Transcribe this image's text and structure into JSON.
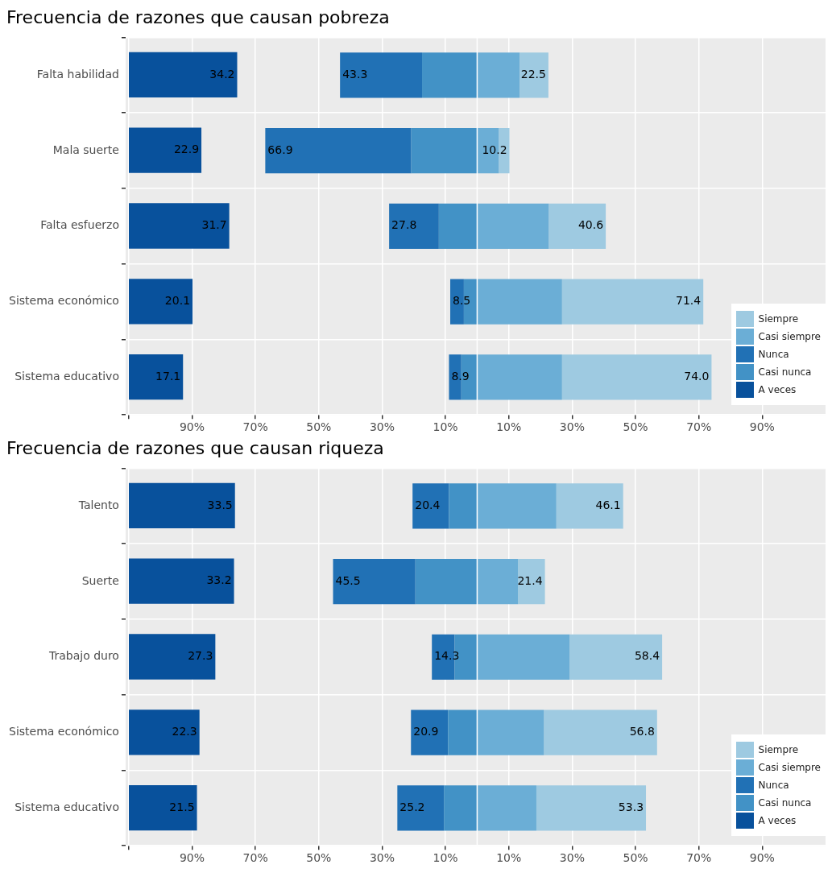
{
  "chart_data": [
    {
      "type": "bar",
      "orientation": "horizontal",
      "stacked": true,
      "title": "Frecuencia de razones que causan pobreza",
      "categories": [
        "Falta habilidad",
        "Mala suerte",
        "Falta esfuerzo",
        "Sistema económico",
        "Sistema educativo"
      ],
      "series": [
        {
          "name": "Casi nunca",
          "color": "#4292c6",
          "values": [
            -17.4,
            -20.8,
            -12.1,
            -4.2,
            -5.0
          ]
        },
        {
          "name": "Nunca",
          "color": "#2171b5",
          "values": [
            -25.9,
            -46.1,
            -15.7,
            -4.3,
            -3.9
          ]
        },
        {
          "name": "Casi siempre",
          "color": "#6baed6",
          "values": [
            13.4,
            6.8,
            22.6,
            26.8,
            26.8
          ]
        },
        {
          "name": "Siempre",
          "color": "#9ecae1",
          "values": [
            9.1,
            3.4,
            18.0,
            44.6,
            47.2
          ]
        }
      ],
      "xlim": [
        -111,
        110
      ],
      "xticks": [
        {
          "value": -110,
          "label": null
        },
        {
          "value": -90,
          "label": "90%"
        },
        {
          "value": -70,
          "label": "70%"
        },
        {
          "value": -50,
          "label": "50%"
        },
        {
          "value": -30,
          "label": "30%"
        },
        {
          "value": -10,
          "label": "10%"
        },
        {
          "value": 10,
          "label": "10%"
        },
        {
          "value": 30,
          "label": "30%"
        },
        {
          "value": 50,
          "label": "50%"
        },
        {
          "value": 70,
          "label": "70%"
        },
        {
          "value": 90,
          "label": "90%"
        }
      ],
      "annotations": [
        {
          "text": "43.3",
          "x": -43.3,
          "y": "Falta habilidad"
        },
        {
          "text": "66.9",
          "x": -66.9,
          "y": "Mala suerte"
        },
        {
          "text": "27.8",
          "x": -27.8,
          "y": "Falta esfuerzo"
        },
        {
          "text": "8.5",
          "x": -8.5,
          "y": "Sistema económico"
        },
        {
          "text": "8.9",
          "x": -8.9,
          "y": "Sistema educativo"
        },
        {
          "text": "22.5",
          "x": 22.5,
          "y": "Falta habilidad"
        },
        {
          "text": "10.2",
          "x": 10.2,
          "y": "Mala suerte"
        },
        {
          "text": "40.6",
          "x": 40.6,
          "y": "Falta esfuerzo"
        },
        {
          "text": "71.4",
          "x": 71.4,
          "y": "Sistema económico"
        },
        {
          "text": "74.0",
          "x": 74.0,
          "y": "Sistema educativo"
        }
      ],
      "grid": true,
      "legend": "bottom right"
    },
    {
      "type": "bar",
      "orientation": "horizontal",
      "categories": [
        "Falta habilidad",
        "Mala suerte",
        "Falta esfuerzo",
        "Sistema económico",
        "Sistema educativo"
      ],
      "series": [
        {
          "name": "A veces",
          "color": "#08519c",
          "values": [
            34.2,
            22.9,
            31.7,
            20.1,
            17.1
          ]
        }
      ],
      "data_labels": true,
      "tick_labels": false,
      "legend": "bottom right"
    },
    {
      "type": "bar",
      "orientation": "horizontal",
      "stacked": true,
      "title": "Frecuencia de razones que causan riqueza",
      "categories": [
        "Talento",
        "Suerte",
        "Trabajo duro",
        "Sistema económico",
        "Sistema educativo"
      ],
      "series": [
        {
          "name": "Casi nunca",
          "color": "#4292c6",
          "values": [
            -8.9,
            -19.5,
            -7.1,
            -9.2,
            -10.5
          ]
        },
        {
          "name": "Nunca",
          "color": "#2171b5",
          "values": [
            -11.5,
            -26.0,
            -7.2,
            -11.7,
            -14.7
          ]
        },
        {
          "name": "Casi siempre",
          "color": "#6baed6",
          "values": [
            25.0,
            12.9,
            29.2,
            21.1,
            18.7
          ]
        },
        {
          "name": "Siempre",
          "color": "#9ecae1",
          "values": [
            21.1,
            8.5,
            29.2,
            35.7,
            34.6
          ]
        }
      ],
      "xlim": [
        -111,
        110
      ],
      "xticks": [
        {
          "value": -110,
          "label": null
        },
        {
          "value": -90,
          "label": "90%"
        },
        {
          "value": -70,
          "label": "70%"
        },
        {
          "value": -50,
          "label": "50%"
        },
        {
          "value": -30,
          "label": "30%"
        },
        {
          "value": -10,
          "label": "10%"
        },
        {
          "value": 10,
          "label": "10%"
        },
        {
          "value": 30,
          "label": "30%"
        },
        {
          "value": 50,
          "label": "50%"
        },
        {
          "value": 70,
          "label": "70%"
        },
        {
          "value": 90,
          "label": "90%"
        }
      ],
      "annotations": [
        {
          "text": "20.4",
          "x": -20.4,
          "y": "Talento"
        },
        {
          "text": "45.5",
          "x": -45.5,
          "y": "Suerte"
        },
        {
          "text": "14.3",
          "x": -14.3,
          "y": "Trabajo duro"
        },
        {
          "text": "20.9",
          "x": -20.9,
          "y": "Sistema económico"
        },
        {
          "text": "25.2",
          "x": -25.2,
          "y": "Sistema educativo"
        },
        {
          "text": "46.1",
          "x": 46.1,
          "y": "Talento"
        },
        {
          "text": "21.4",
          "x": 21.4,
          "y": "Suerte"
        },
        {
          "text": "58.4",
          "x": 58.4,
          "y": "Trabajo duro"
        },
        {
          "text": "56.8",
          "x": 56.8,
          "y": "Sistema económico"
        },
        {
          "text": "53.3",
          "x": 53.3,
          "y": "Sistema educativo"
        }
      ],
      "grid": true,
      "legend": "bottom right"
    },
    {
      "type": "bar",
      "orientation": "horizontal",
      "categories": [
        "Talento",
        "Suerte",
        "Trabajo duro",
        "Sistema económico",
        "Sistema educativo"
      ],
      "series": [
        {
          "name": "A veces",
          "color": "#08519c",
          "values": [
            33.5,
            33.2,
            27.3,
            22.3,
            21.5
          ]
        }
      ],
      "data_labels": true,
      "tick_labels": false,
      "legend": "bottom right"
    }
  ]
}
